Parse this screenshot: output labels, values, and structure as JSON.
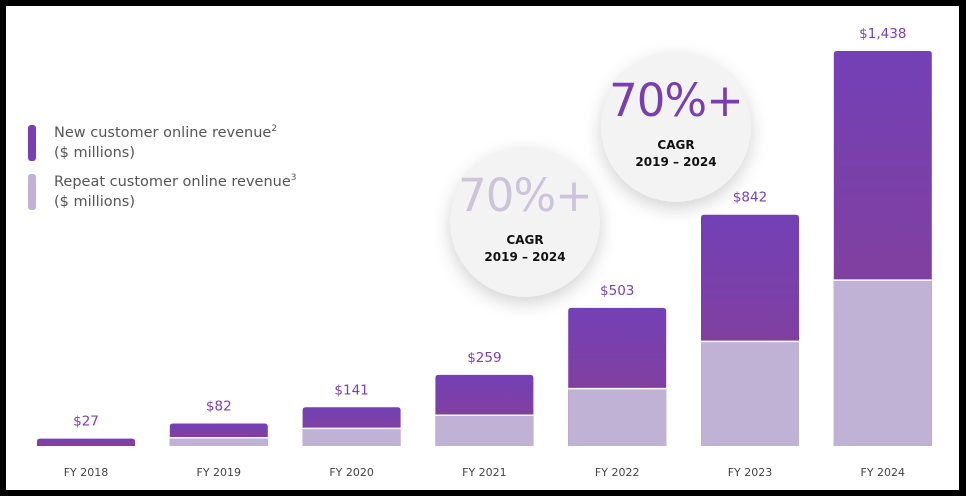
{
  "legend": [
    {
      "name": "New customer online revenue",
      "sup": "2",
      "unit": "($ millions)",
      "color": "#7b3fb4"
    },
    {
      "name": "Repeat customer online revenue",
      "sup": "3",
      "unit": "($ millions)",
      "color": "#c0b2d4"
    }
  ],
  "callouts": [
    {
      "value": "70%+",
      "label": "CAGR",
      "period": "2019 – 2024",
      "color": "#cdc3da"
    },
    {
      "value": "70%+",
      "label": "CAGR",
      "period": "2019 – 2024",
      "color": "#7a3fae"
    }
  ],
  "chart_data": {
    "type": "bar",
    "stacked": true,
    "categories": [
      "FY 2018",
      "FY 2019",
      "FY 2020",
      "FY 2021",
      "FY 2022",
      "FY 2023",
      "FY 2024"
    ],
    "series": [
      {
        "name": "Repeat customer online revenue",
        "values": [
          0,
          30,
          64,
          112,
          209,
          381,
          604
        ]
      },
      {
        "name": "New customer online revenue",
        "values": [
          27,
          52,
          77,
          147,
          294,
          461,
          834
        ]
      }
    ],
    "totals": [
      27,
      82,
      141,
      259,
      503,
      842,
      1438
    ],
    "total_labels": [
      "$27",
      "$82",
      "$141",
      "$259",
      "$503",
      "$842",
      "$1,438"
    ],
    "ylim": [
      0,
      1438
    ],
    "grid": false,
    "legend_position": "left"
  }
}
